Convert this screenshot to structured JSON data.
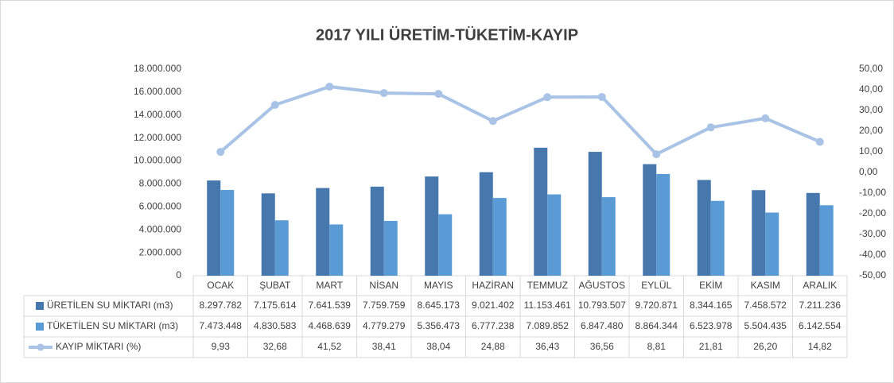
{
  "chart_data": {
    "type": "bar",
    "title": "2017 YILI ÜRETİM-TÜKETİM-KAYIP",
    "categories": [
      "OCAK",
      "ŞUBAT",
      "MART",
      "NİSAN",
      "MAYIS",
      "HAZİRAN",
      "TEMMUZ",
      "AĞUSTOS",
      "EYLÜL",
      "EKİM",
      "KASIM",
      "ARALIK"
    ],
    "series": [
      {
        "name": "ÜRETİLEN SU MİKTARI (m3)",
        "color": "#4677ad",
        "values": [
          8297782,
          7175614,
          7641539,
          7759759,
          8645173,
          9021402,
          11153461,
          10793507,
          9720871,
          8344165,
          7458572,
          7211236
        ],
        "value_labels": [
          "8.297.782",
          "7.175.614",
          "7.641.539",
          "7.759.759",
          "8.645.173",
          "9.021.402",
          "11.153.461",
          "10.793.507",
          "9.720.871",
          "8.344.165",
          "7.458.572",
          "7.211.236"
        ]
      },
      {
        "name": "TÜKETİLEN SU MİKTARI (m3)",
        "color": "#5b9bd5",
        "values": [
          7473448,
          4830583,
          4468639,
          4779279,
          5356473,
          6777238,
          7089852,
          6847480,
          8864344,
          6523978,
          5504435,
          6142554
        ],
        "value_labels": [
          "7.473.448",
          "4.830.583",
          "4.468.639",
          "4.779.279",
          "5.356.473",
          "6.777.238",
          "7.089.852",
          "6.847.480",
          "8.864.344",
          "6.523.978",
          "5.504.435",
          "6.142.554"
        ]
      },
      {
        "name": "KAYIP MİKTARI (%)",
        "color": "#a9c3e6",
        "type": "line",
        "axis": "y2",
        "values": [
          9.93,
          32.68,
          41.52,
          38.41,
          38.04,
          24.88,
          36.43,
          36.56,
          8.81,
          21.81,
          26.2,
          14.82
        ],
        "value_labels": [
          "9,93",
          "32,68",
          "41,52",
          "38,41",
          "38,04",
          "24,88",
          "36,43",
          "36,56",
          "8,81",
          "21,81",
          "26,20",
          "14,82"
        ]
      }
    ],
    "ylim": [
      0,
      18000000
    ],
    "yticks": [
      0,
      {
        "value": 2000000,
        "label": "2.000.000"
      },
      {
        "value": 4000000,
        "label": "4.000.000"
      },
      {
        "value": 6000000,
        "label": "6.000.000"
      },
      {
        "value": 8000000,
        "label": "8.000.000"
      },
      {
        "value": 10000000,
        "label": "10.000.000"
      },
      {
        "value": 12000000,
        "label": "12.000.000"
      },
      {
        "value": 14000000,
        "label": "14.000.000"
      },
      {
        "value": 16000000,
        "label": "16.000.000"
      },
      {
        "value": 18000000,
        "label": "18.000.000"
      }
    ],
    "y2lim": [
      -50,
      50
    ],
    "y2ticks": [
      {
        "value": -50,
        "label": "-50,00"
      },
      {
        "value": -40,
        "label": "-40,00"
      },
      {
        "value": -30,
        "label": "-30,00"
      },
      {
        "value": -20,
        "label": "-20,00"
      },
      {
        "value": -10,
        "label": "-10,00"
      },
      {
        "value": 0,
        "label": "0,00"
      },
      {
        "value": 10,
        "label": "10,00"
      },
      {
        "value": 20,
        "label": "20,00"
      },
      {
        "value": 30,
        "label": "30,00"
      },
      {
        "value": 40,
        "label": "40,00"
      },
      {
        "value": 50,
        "label": "50,00"
      }
    ],
    "grid": false
  }
}
